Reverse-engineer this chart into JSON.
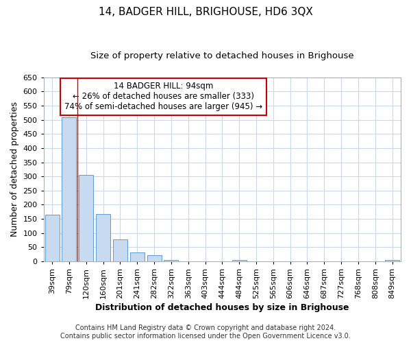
{
  "title": "14, BADGER HILL, BRIGHOUSE, HD6 3QX",
  "subtitle": "Size of property relative to detached houses in Brighouse",
  "xlabel": "Distribution of detached houses by size in Brighouse",
  "ylabel": "Number of detached properties",
  "categories": [
    "39sqm",
    "79sqm",
    "120sqm",
    "160sqm",
    "201sqm",
    "241sqm",
    "282sqm",
    "322sqm",
    "363sqm",
    "403sqm",
    "444sqm",
    "484sqm",
    "525sqm",
    "565sqm",
    "606sqm",
    "646sqm",
    "687sqm",
    "727sqm",
    "768sqm",
    "808sqm",
    "849sqm"
  ],
  "values": [
    165,
    510,
    305,
    168,
    78,
    32,
    22,
    5,
    0,
    0,
    0,
    5,
    0,
    0,
    0,
    0,
    0,
    0,
    0,
    0,
    5
  ],
  "bar_color": "#c8daf0",
  "bar_edge_color": "#5b9bd5",
  "ylim": [
    0,
    650
  ],
  "red_line_x": 1.5,
  "annotation_text": "14 BADGER HILL: 94sqm\n← 26% of detached houses are smaller (333)\n74% of semi-detached houses are larger (945) →",
  "annotation_box_color": "#ffffff",
  "annotation_box_edge": "#cc0000",
  "footer_line1": "Contains HM Land Registry data © Crown copyright and database right 2024.",
  "footer_line2": "Contains public sector information licensed under the Open Government Licence v3.0.",
  "background_color": "#ffffff",
  "grid_color": "#c8d8ee",
  "yticks": [
    0,
    50,
    100,
    150,
    200,
    250,
    300,
    350,
    400,
    450,
    500,
    550,
    600,
    650
  ],
  "title_fontsize": 11,
  "subtitle_fontsize": 9.5,
  "axis_label_fontsize": 9,
  "tick_fontsize": 8,
  "annotation_fontsize": 8.5,
  "footer_fontsize": 7
}
